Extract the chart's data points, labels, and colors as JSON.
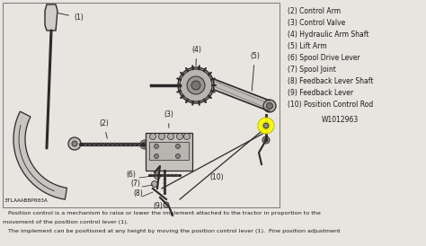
{
  "bg_color": "#e8e4df",
  "box_bg": "#e8e4df",
  "box_edge": "#888888",
  "lc": "#2a2a2a",
  "gc": "#666666",
  "tc": "#1a1a1a",
  "highlight": "#ffff00",
  "legend_items": [
    "(2) Control Arm",
    "(3) Control Valve",
    "(4) Hydraulic Arm Shaft",
    "(5) Lift Arm",
    "(6) Spool Drive Lever",
    "(7) Spool Joint",
    "(8) Feedback Lever Shaft",
    "(9) Feedback Lever",
    "(10) Position Control Rod"
  ],
  "part_code": "W1012963",
  "diagram_code": "3TLAAAB8P003A",
  "cap1": "   Position control is a mechanism to raise or lower the implement attached to the tractor in proportion to the",
  "cap2": "movement of the position control lever (1).",
  "cap3": "   The implement can be positioned at any height by moving the position control lever (1).  Fine position adjustment"
}
